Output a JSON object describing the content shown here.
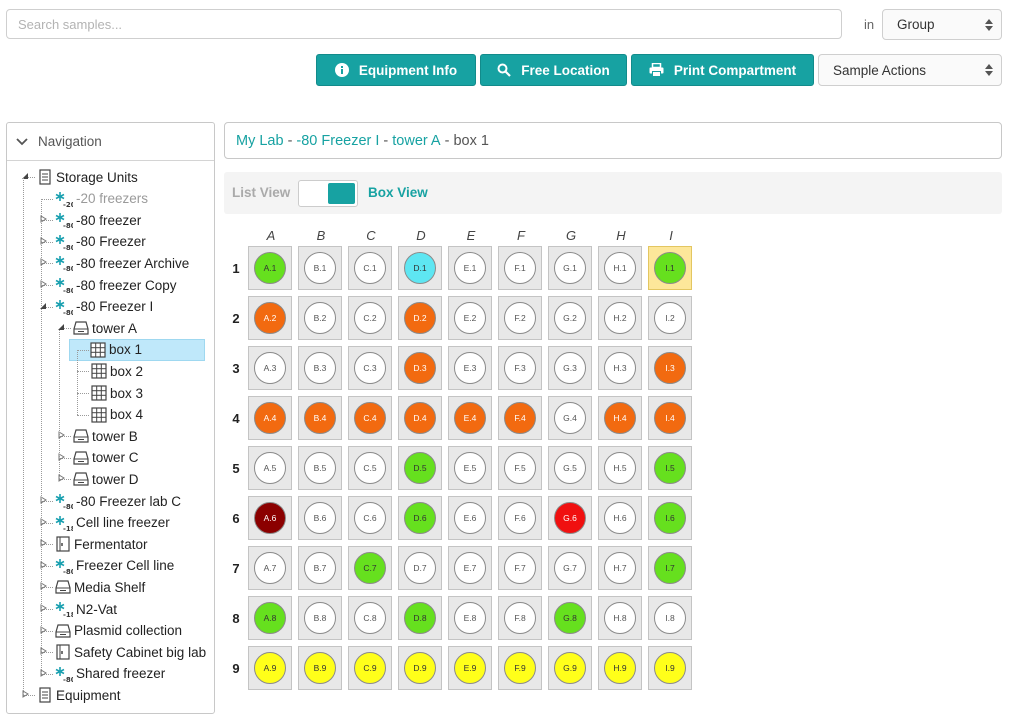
{
  "search": {
    "placeholder": "Search samples...",
    "in_label": "in",
    "scope_value": "Group"
  },
  "toolbar": {
    "equipment_info": "Equipment Info",
    "free_location": "Free Location",
    "print_compartment": "Print Compartment",
    "sample_actions": "Sample Actions"
  },
  "navigation": {
    "title": "Navigation",
    "tree": [
      {
        "label": "Storage Units",
        "icon": "storage-unit-icon",
        "level": 0,
        "toggle": "expanded"
      },
      {
        "label": "-20 freezers",
        "icon": "freezer-20-icon",
        "level": 1,
        "dim": true
      },
      {
        "label": "-80 freezer",
        "icon": "freezer-80-icon",
        "level": 1,
        "toggle": "collapsed"
      },
      {
        "label": "-80 Freezer",
        "icon": "freezer-80-icon",
        "level": 1,
        "toggle": "collapsed"
      },
      {
        "label": "-80 freezer Archive",
        "icon": "freezer-80-icon",
        "level": 1,
        "toggle": "collapsed"
      },
      {
        "label": "-80 freezer Copy",
        "icon": "freezer-80-icon",
        "level": 1,
        "toggle": "collapsed"
      },
      {
        "label": "-80 Freezer I",
        "icon": "freezer-80-icon",
        "level": 1,
        "toggle": "expanded"
      },
      {
        "label": "tower A",
        "icon": "tower-icon",
        "level": 2,
        "toggle": "expanded"
      },
      {
        "label": "box 1",
        "icon": "box-grid-icon",
        "level": 3,
        "selected": true
      },
      {
        "label": "box 2",
        "icon": "box-grid-icon",
        "level": 3
      },
      {
        "label": "box 3",
        "icon": "box-grid-icon",
        "level": 3
      },
      {
        "label": "box 4",
        "icon": "box-grid-icon",
        "level": 3
      },
      {
        "label": "tower B",
        "icon": "tower-icon",
        "level": 2,
        "toggle": "collapsed"
      },
      {
        "label": "tower C",
        "icon": "tower-icon",
        "level": 2,
        "toggle": "collapsed"
      },
      {
        "label": "tower D",
        "icon": "tower-icon",
        "level": 2,
        "toggle": "collapsed"
      },
      {
        "label": "-80 Freezer lab C",
        "icon": "freezer-80-icon",
        "level": 1,
        "toggle": "collapsed"
      },
      {
        "label": "Cell line freezer",
        "icon": "freezer-180-icon",
        "level": 1,
        "toggle": "collapsed"
      },
      {
        "label": "Fermentator",
        "icon": "cabinet-icon",
        "level": 1,
        "toggle": "collapsed"
      },
      {
        "label": "Freezer Cell line",
        "icon": "freezer-80-icon",
        "level": 1,
        "toggle": "collapsed"
      },
      {
        "label": "Media Shelf",
        "icon": "tower-icon",
        "level": 1,
        "toggle": "collapsed"
      },
      {
        "label": "N2-Vat",
        "icon": "freezer-180-icon",
        "level": 1,
        "toggle": "collapsed"
      },
      {
        "label": "Plasmid collection",
        "icon": "tower-icon",
        "level": 1,
        "toggle": "collapsed"
      },
      {
        "label": "Safety Cabinet big lab",
        "icon": "cabinet-icon",
        "level": 1,
        "toggle": "collapsed"
      },
      {
        "label": "Shared freezer",
        "icon": "freezer-80-icon",
        "level": 1,
        "toggle": "collapsed"
      },
      {
        "label": "Equipment",
        "icon": "storage-unit-icon",
        "level": 0,
        "toggle": "collapsed"
      }
    ]
  },
  "breadcrumb": {
    "items": [
      "My Lab",
      "-80 Freezer I",
      "tower A"
    ],
    "current": "box 1",
    "separator": "-"
  },
  "view_switch": {
    "list_label": "List View",
    "box_label": "Box View",
    "active": "box"
  },
  "colors": {
    "accent": "#17a2a2",
    "empty": "#ffffff",
    "green": "#66e01e",
    "orange": "#f26a10",
    "yellow": "#ffff1a",
    "cyan": "#5ee6f2",
    "red": "#f01010",
    "darkred": "#8b0000",
    "highlight": "#fde79a"
  },
  "box": {
    "columns": [
      "A",
      "B",
      "C",
      "D",
      "E",
      "F",
      "G",
      "H",
      "I"
    ],
    "rows": [
      "1",
      "2",
      "3",
      "4",
      "5",
      "6",
      "7",
      "8",
      "9"
    ],
    "highlight_cell": "I.1",
    "wells": [
      [
        "green",
        "empty",
        "empty",
        "cyan",
        "empty",
        "empty",
        "empty",
        "empty",
        "green"
      ],
      [
        "orange",
        "empty",
        "empty",
        "orange",
        "empty",
        "empty",
        "empty",
        "empty",
        "empty"
      ],
      [
        "empty",
        "empty",
        "empty",
        "orange",
        "empty",
        "empty",
        "empty",
        "empty",
        "orange"
      ],
      [
        "orange",
        "orange",
        "orange",
        "orange",
        "orange",
        "orange",
        "empty",
        "orange",
        "orange"
      ],
      [
        "empty",
        "empty",
        "empty",
        "green",
        "empty",
        "empty",
        "empty",
        "empty",
        "green"
      ],
      [
        "darkred",
        "empty",
        "empty",
        "green",
        "empty",
        "empty",
        "red",
        "empty",
        "green"
      ],
      [
        "empty",
        "empty",
        "green",
        "empty",
        "empty",
        "empty",
        "empty",
        "empty",
        "green"
      ],
      [
        "green",
        "empty",
        "empty",
        "green",
        "empty",
        "empty",
        "green",
        "empty",
        "empty"
      ],
      [
        "yellow",
        "yellow",
        "yellow",
        "yellow",
        "yellow",
        "yellow",
        "yellow",
        "yellow",
        "yellow"
      ]
    ]
  }
}
